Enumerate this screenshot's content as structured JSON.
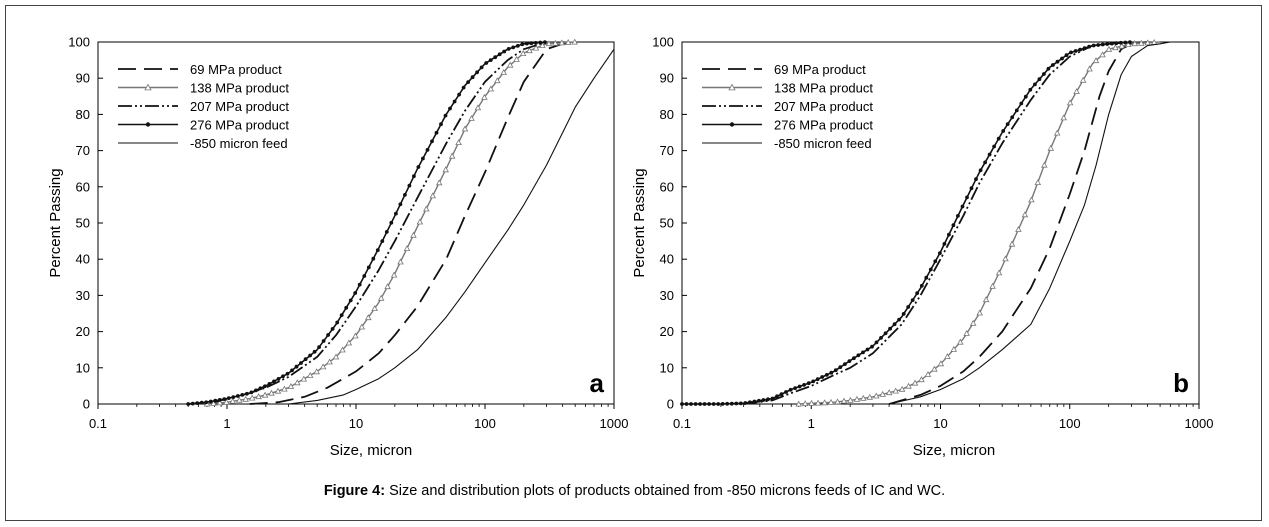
{
  "caption": {
    "label": "Figure 4:",
    "text": " Size and distribution plots of products obtained from -850 microns feeds of IC and WC."
  },
  "chart_data": [
    {
      "type": "line",
      "panel_label": "a",
      "xlabel": "Size, micron",
      "ylabel": "Percent Passing",
      "xscale": "log",
      "xlim": [
        0.1,
        1000
      ],
      "ylim": [
        0,
        100
      ],
      "xticks": [
        "0.1",
        "1",
        "10",
        "100",
        "1000"
      ],
      "yticks": [
        "0",
        "10",
        "20",
        "30",
        "40",
        "50",
        "60",
        "70",
        "80",
        "90",
        "100"
      ],
      "grid": false,
      "legend_position": "top-left",
      "series": [
        {
          "name": "69 MPa product",
          "style": "long-dash",
          "marker": "none",
          "x": [
            1.5,
            2.5,
            4,
            6,
            10,
            15,
            20,
            30,
            50,
            70,
            100,
            150,
            200,
            300,
            400,
            500
          ],
          "y": [
            0,
            0.5,
            2,
            4.5,
            9,
            14,
            19,
            27,
            40,
            52,
            64,
            79,
            89,
            98,
            99.5,
            100
          ]
        },
        {
          "name": "138 MPa product",
          "style": "solid-grey",
          "marker": "triangle",
          "x": [
            0.7,
            1,
            1.5,
            2,
            3,
            5,
            7,
            10,
            15,
            20,
            30,
            50,
            70,
            100,
            150,
            200,
            300,
            500
          ],
          "y": [
            0,
            0.5,
            1.5,
            2.5,
            4.5,
            9,
            13,
            19,
            28,
            36,
            49,
            65,
            76,
            85,
            93,
            97,
            99.5,
            100
          ]
        },
        {
          "name": "207 MPa product",
          "style": "dash-dot-dot",
          "marker": "none",
          "x": [
            0.5,
            0.8,
            1,
            1.5,
            2,
            3,
            5,
            7,
            10,
            15,
            20,
            30,
            50,
            70,
            100,
            150,
            200,
            300
          ],
          "y": [
            0,
            0.5,
            1.5,
            3,
            4.5,
            7.5,
            13,
            19,
            27,
            37,
            45,
            57,
            72,
            81,
            89,
            95,
            98,
            100
          ]
        },
        {
          "name": "276 MPa product",
          "style": "solid-dark",
          "marker": "dot",
          "x": [
            0.5,
            0.7,
            1,
            1.5,
            2,
            3,
            5,
            7,
            10,
            15,
            20,
            30,
            50,
            70,
            100,
            150,
            200,
            300
          ],
          "y": [
            0,
            0.5,
            1.5,
            3,
            5,
            8.5,
            15,
            22,
            31,
            43,
            52,
            65,
            80,
            88,
            94,
            98,
            99.5,
            100
          ]
        },
        {
          "name": "-850 micron feed",
          "style": "solid-thin",
          "marker": "none",
          "x": [
            3,
            5,
            8,
            10,
            15,
            20,
            30,
            50,
            70,
            100,
            150,
            200,
            300,
            400,
            500,
            700,
            1000
          ],
          "y": [
            0,
            1,
            2.5,
            4,
            7,
            10,
            15,
            24,
            31,
            39,
            48,
            55,
            66,
            75,
            82,
            90,
            98
          ]
        }
      ]
    },
    {
      "type": "line",
      "panel_label": "b",
      "xlabel": "Size, micron",
      "ylabel": "Percent Passing",
      "xscale": "log",
      "xlim": [
        0.1,
        1000
      ],
      "ylim": [
        0,
        100
      ],
      "xticks": [
        "0.1",
        "1",
        "10",
        "100",
        "1000"
      ],
      "yticks": [
        "0",
        "10",
        "20",
        "30",
        "40",
        "50",
        "60",
        "70",
        "80",
        "90",
        "100"
      ],
      "grid": false,
      "legend_position": "top-left",
      "series": [
        {
          "name": "69 MPa product",
          "style": "long-dash",
          "marker": "none",
          "x": [
            4,
            7,
            10,
            15,
            20,
            30,
            50,
            70,
            100,
            130,
            170,
            200,
            250,
            300,
            400
          ],
          "y": [
            0,
            2.5,
            5,
            9,
            13,
            20,
            32,
            43,
            58,
            70,
            85,
            92,
            98,
            99.5,
            100
          ]
        },
        {
          "name": "138 MPa product",
          "style": "solid-grey",
          "marker": "triangle",
          "x": [
            0.8,
            1.5,
            2,
            3,
            5,
            7,
            10,
            15,
            20,
            30,
            50,
            70,
            100,
            150,
            200,
            300,
            500
          ],
          "y": [
            0,
            0.5,
            1,
            2,
            4,
            6.5,
            11,
            18,
            25,
            38,
            56,
            70,
            83,
            94,
            98,
            99.5,
            100
          ]
        },
        {
          "name": "207 MPa product",
          "style": "dash-dot-dot",
          "marker": "none",
          "x": [
            0.3,
            0.5,
            0.7,
            1,
            1.5,
            2,
            3,
            5,
            7,
            10,
            15,
            20,
            30,
            50,
            70,
            100,
            150,
            200,
            300
          ],
          "y": [
            0,
            1,
            3,
            5,
            8,
            10,
            14,
            22,
            30,
            40,
            52,
            61,
            72,
            84,
            91,
            96,
            99,
            99.5,
            100
          ]
        },
        {
          "name": "276 MPa product",
          "style": "solid-dark",
          "marker": "dot",
          "x": [
            0.1,
            0.2,
            0.3,
            0.5,
            0.7,
            1,
            1.5,
            2,
            3,
            5,
            7,
            10,
            15,
            20,
            30,
            50,
            70,
            100,
            150,
            200,
            300
          ],
          "y": [
            0,
            0,
            0.2,
            1.5,
            4,
            6,
            9,
            12,
            16,
            24,
            32,
            42,
            55,
            64,
            75,
            87,
            93,
            97,
            99,
            99.5,
            100
          ]
        },
        {
          "name": "-850 micron feed",
          "style": "solid-thin",
          "marker": "none",
          "x": [
            4,
            7,
            10,
            15,
            20,
            30,
            50,
            70,
            100,
            130,
            160,
            200,
            250,
            300,
            400,
            500,
            600
          ],
          "y": [
            0,
            2,
            4,
            7,
            10,
            15,
            22,
            32,
            45,
            55,
            66,
            80,
            91,
            96,
            99,
            99.5,
            100
          ]
        }
      ]
    }
  ]
}
